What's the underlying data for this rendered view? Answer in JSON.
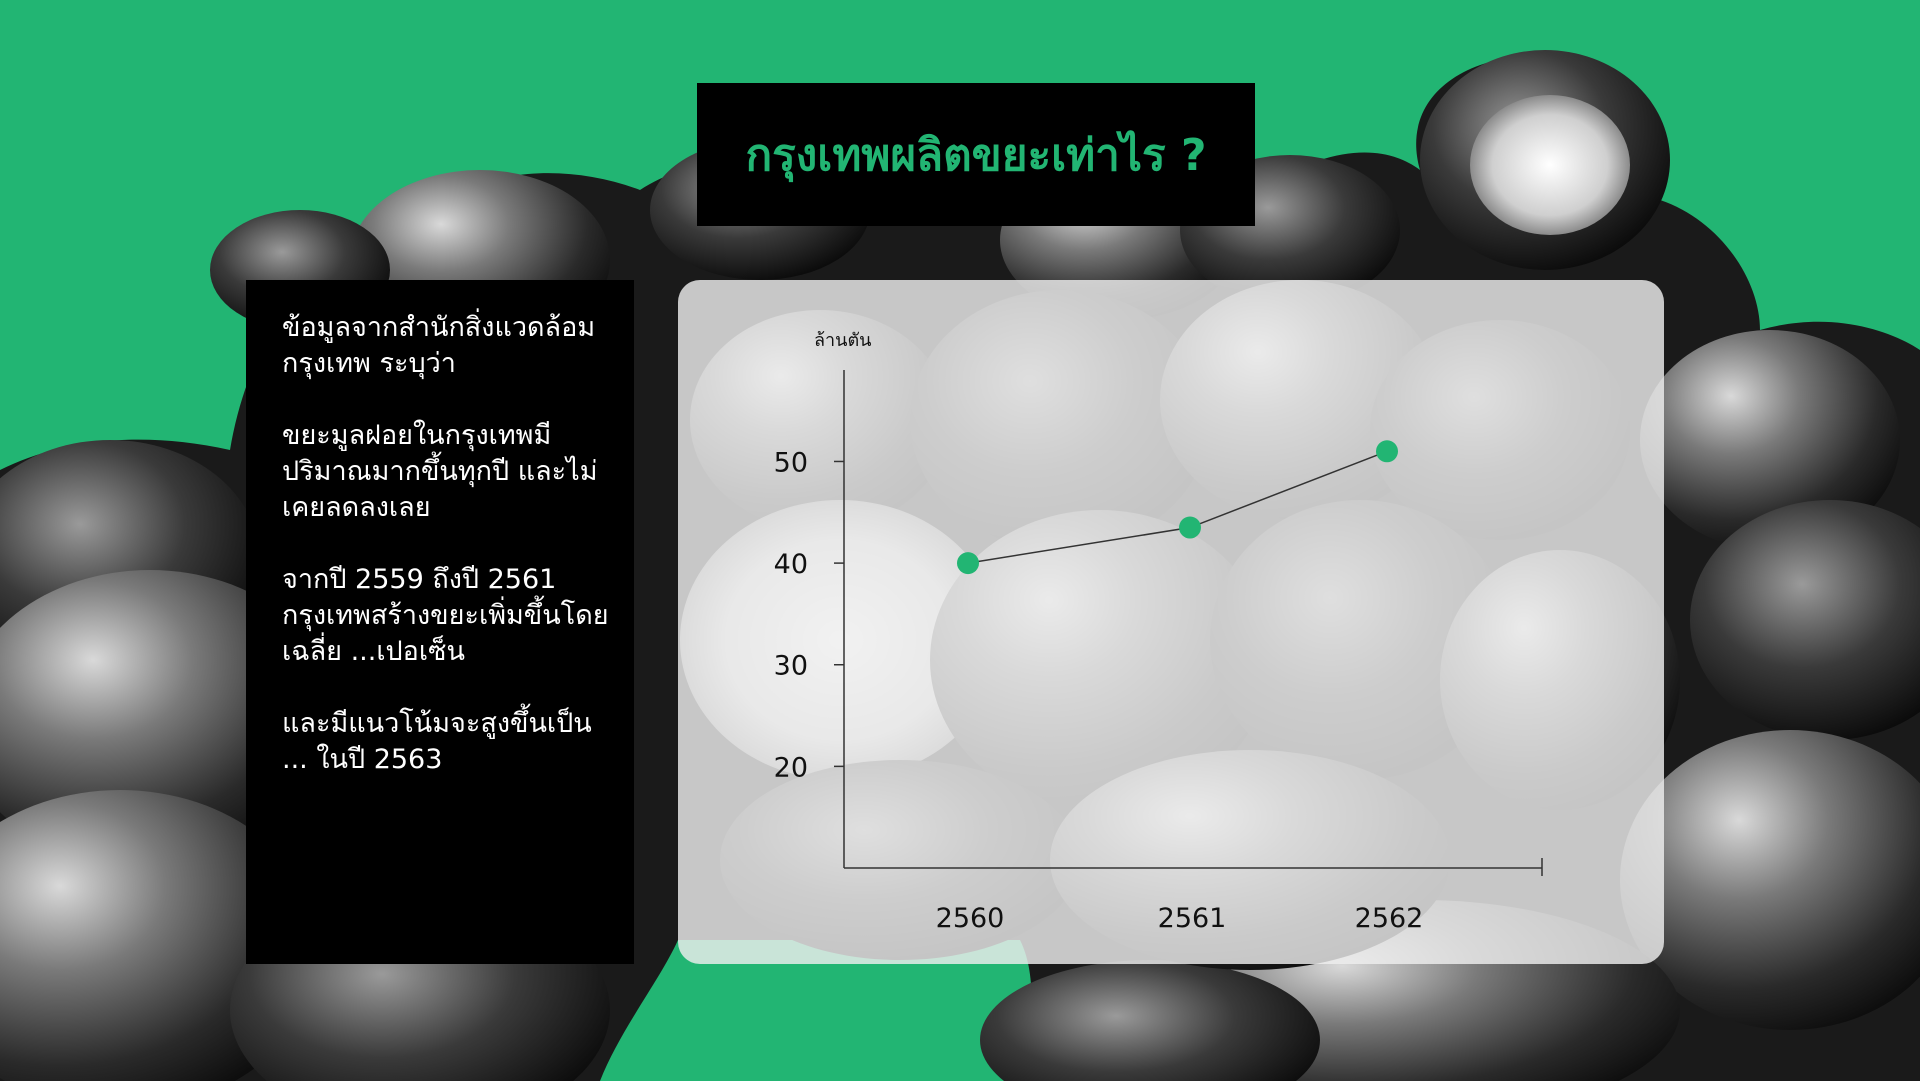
{
  "title": "กรุงเทพผลิตขยะเท่าไร ?",
  "side_text": [
    "ข้อมูลจากสำนักสิ่งแวดล้อมกรุงเทพ ระบุว่า",
    "ขยะมูลฝอยในกรุงเทพมีปริมาณมากขึ้นทุกปี และไม่เคยลดลงเลย",
    "จากปี 2559 ถึงปี 2561 กรุงเทพสร้างขยะเพิ่มขึ้นโดยเฉลี่ย ...เปอเซ็น",
    "และมีแนวโน้มจะสูงขึ้นเป็น ... ในปี 2563"
  ],
  "colors": {
    "accent": "#22b573",
    "panel": "#000000",
    "line": "#333333"
  },
  "chart_data": {
    "type": "line",
    "ylabel": "ล้านตัน",
    "categories": [
      "2560",
      "2561",
      "2562"
    ],
    "values": [
      40,
      43.5,
      51
    ],
    "yticks": [
      20,
      30,
      40,
      50
    ],
    "ylim": [
      10,
      59
    ],
    "grid": false,
    "legend": "none"
  }
}
